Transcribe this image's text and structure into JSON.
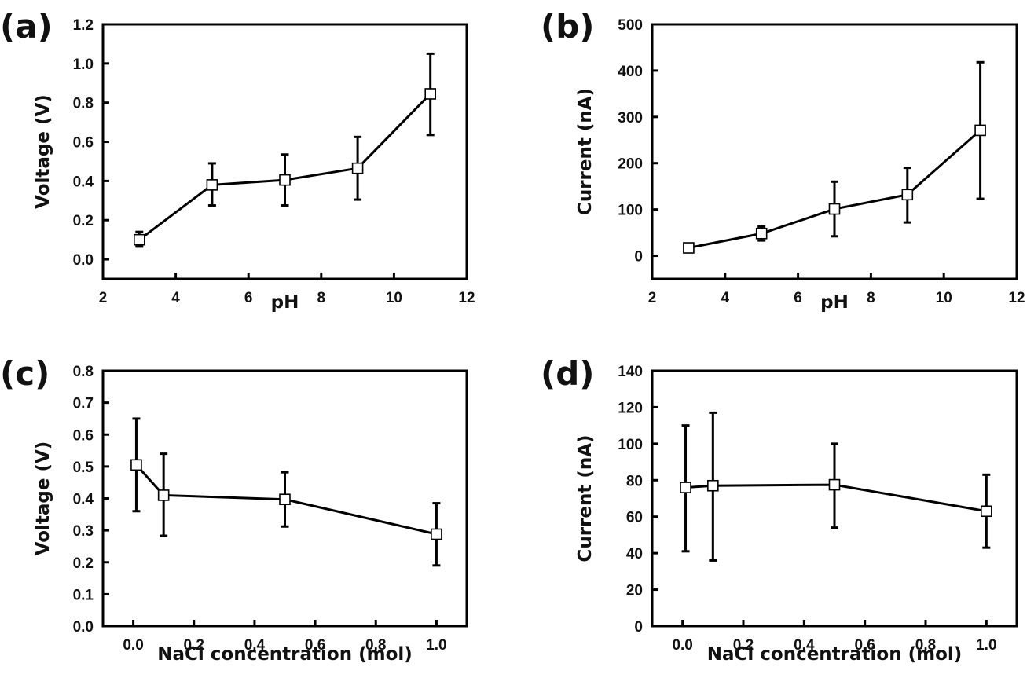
{
  "chart_data": [
    {
      "panel": "(a)",
      "type": "line",
      "title": "",
      "xlabel": "pH",
      "ylabel": "Voltage (V)",
      "xlim": [
        2,
        12
      ],
      "ylim": [
        -0.1,
        1.2
      ],
      "xticks": [
        2,
        4,
        6,
        8,
        10,
        12
      ],
      "xtick_labels": [
        "2",
        "4",
        "6",
        "8",
        "10",
        "12"
      ],
      "yticks": [
        0.0,
        0.2,
        0.4,
        0.6,
        0.8,
        1.0,
        1.2
      ],
      "ytick_labels": [
        "0.0",
        "0.2",
        "0.4",
        "0.6",
        "0.8",
        "1.0",
        "1.2"
      ],
      "grid": false,
      "marker": "open-square",
      "x": [
        3,
        5,
        7,
        9,
        11
      ],
      "y": [
        0.1,
        0.38,
        0.405,
        0.465,
        0.845
      ],
      "err_low": [
        0.065,
        0.275,
        0.275,
        0.305,
        0.635
      ],
      "err_high": [
        0.14,
        0.49,
        0.535,
        0.625,
        1.05
      ]
    },
    {
      "panel": "(b)",
      "type": "line",
      "title": "",
      "xlabel": "pH",
      "ylabel": "Current (nA)",
      "xlim": [
        2,
        12
      ],
      "ylim": [
        -50,
        500
      ],
      "xticks": [
        2,
        4,
        6,
        8,
        10,
        12
      ],
      "xtick_labels": [
        "2",
        "4",
        "6",
        "8",
        "10",
        "12"
      ],
      "yticks": [
        0,
        100,
        200,
        300,
        400,
        500
      ],
      "ytick_labels": [
        "0",
        "100",
        "200",
        "300",
        "400",
        "500"
      ],
      "grid": false,
      "marker": "open-square",
      "x": [
        3,
        5,
        7,
        9,
        11
      ],
      "y": [
        17,
        48,
        101,
        132,
        271
      ],
      "err_low": [
        8,
        33,
        42,
        72,
        123
      ],
      "err_high": [
        25,
        63,
        160,
        190,
        418
      ]
    },
    {
      "panel": "(c)",
      "type": "line",
      "title": "",
      "xlabel": "NaCl concentration (mol)",
      "ylabel": "Voltage (V)",
      "xlim": [
        -0.1,
        1.1
      ],
      "ylim": [
        0,
        0.8
      ],
      "xticks": [
        0.0,
        0.2,
        0.4,
        0.6,
        0.8,
        1.0
      ],
      "xtick_labels": [
        "0.0",
        "0.2",
        "0.4",
        "0.6",
        "0.8",
        "1.0"
      ],
      "yticks": [
        0.0,
        0.1,
        0.2,
        0.3,
        0.4,
        0.5,
        0.6,
        0.7,
        0.8
      ],
      "ytick_labels": [
        "0.0",
        "0.1",
        "0.2",
        "0.3",
        "0.4",
        "0.5",
        "0.6",
        "0.7",
        "0.8"
      ],
      "grid": false,
      "marker": "open-square",
      "x": [
        0.01,
        0.1,
        0.5,
        1.0
      ],
      "y": [
        0.505,
        0.41,
        0.397,
        0.288
      ],
      "err_low": [
        0.36,
        0.283,
        0.312,
        0.19
      ],
      "err_high": [
        0.65,
        0.54,
        0.482,
        0.385
      ]
    },
    {
      "panel": "(d)",
      "type": "line",
      "title": "",
      "xlabel": "NaCl concentration (mol)",
      "ylabel": "Current (nA)",
      "xlim": [
        -0.1,
        1.1
      ],
      "ylim": [
        0,
        140
      ],
      "xticks": [
        0.0,
        0.2,
        0.4,
        0.6,
        0.8,
        1.0
      ],
      "xtick_labels": [
        "0.0",
        "0.2",
        "0.4",
        "0.6",
        "0.8",
        "1.0"
      ],
      "yticks": [
        0,
        20,
        40,
        60,
        80,
        100,
        120,
        140
      ],
      "ytick_labels": [
        "0",
        "20",
        "40",
        "60",
        "80",
        "100",
        "120",
        "140"
      ],
      "grid": false,
      "marker": "open-square",
      "x": [
        0.01,
        0.1,
        0.5,
        1.0
      ],
      "y": [
        76,
        77,
        77.5,
        63
      ],
      "err_low": [
        41,
        36,
        54,
        43
      ],
      "err_high": [
        110,
        117,
        100,
        83
      ]
    }
  ]
}
